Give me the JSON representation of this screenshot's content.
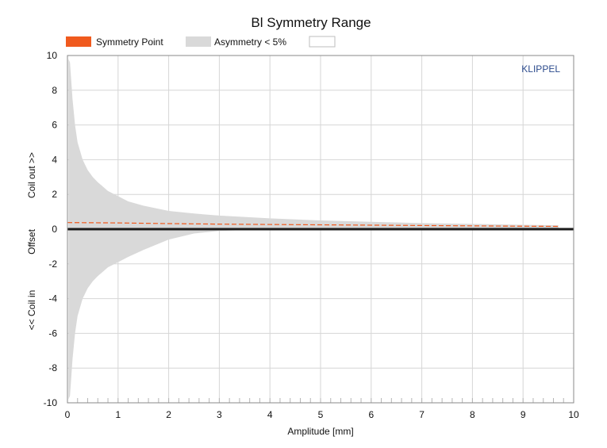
{
  "chart_data": {
    "type": "area",
    "title": "Bl Symmetry Range",
    "xlabel": "Amplitude [mm]",
    "ylabel": {
      "upper": "Coil out >>",
      "middle": "Offset",
      "lower": "<< Coil in"
    },
    "brand": "KLIPPEL",
    "xlim": [
      0,
      10
    ],
    "ylim": [
      -10,
      10
    ],
    "xticks": [
      "0",
      "1",
      "2",
      "3",
      "4",
      "5",
      "6",
      "7",
      "8",
      "9",
      "10"
    ],
    "yticks": [
      "10",
      "8",
      "6",
      "4",
      "2",
      "0",
      "-2",
      "-4",
      "-6",
      "-8",
      "-10"
    ],
    "grid": true,
    "legend": {
      "placement": "top",
      "entries": [
        {
          "label": "Symmetry Point",
          "color": "#f05a1e"
        },
        {
          "label": "Asymmetry < 5%",
          "color": "#d9d9d9"
        },
        {
          "label": "",
          "color": "#ffffff"
        }
      ]
    },
    "series": [
      {
        "name": "Asymmetry < 5%",
        "type": "band",
        "color": "#d9d9d9",
        "x": [
          0.02,
          0.05,
          0.1,
          0.15,
          0.2,
          0.3,
          0.4,
          0.5,
          0.6,
          0.8,
          1.0,
          1.2,
          1.5,
          2.0,
          2.5,
          3.0,
          3.5,
          4.0,
          5.0,
          6.0,
          7.0,
          8.0,
          9.0,
          9.7
        ],
        "upper": [
          9.8,
          9.6,
          7.5,
          6.0,
          5.0,
          4.0,
          3.4,
          3.0,
          2.7,
          2.2,
          1.9,
          1.6,
          1.35,
          1.05,
          0.9,
          0.78,
          0.7,
          0.62,
          0.5,
          0.42,
          0.35,
          0.3,
          0.25,
          0.22
        ],
        "lower": [
          -9.8,
          -9.6,
          -7.5,
          -6.0,
          -5.0,
          -4.0,
          -3.4,
          -3.0,
          -2.7,
          -2.2,
          -1.9,
          -1.6,
          -1.2,
          -0.6,
          -0.25,
          -0.1,
          -0.05,
          -0.03,
          -0.02,
          -0.02,
          -0.02,
          -0.02,
          -0.02,
          -0.02
        ]
      },
      {
        "name": "Symmetry Point",
        "type": "line",
        "dashed": true,
        "color": "#f05a1e",
        "x": [
          0.0,
          1.0,
          2.0,
          3.0,
          4.0,
          5.0,
          6.0,
          7.0,
          8.0,
          9.0,
          9.7
        ],
        "values": [
          0.38,
          0.36,
          0.32,
          0.29,
          0.27,
          0.25,
          0.23,
          0.21,
          0.19,
          0.17,
          0.16
        ]
      }
    ]
  }
}
